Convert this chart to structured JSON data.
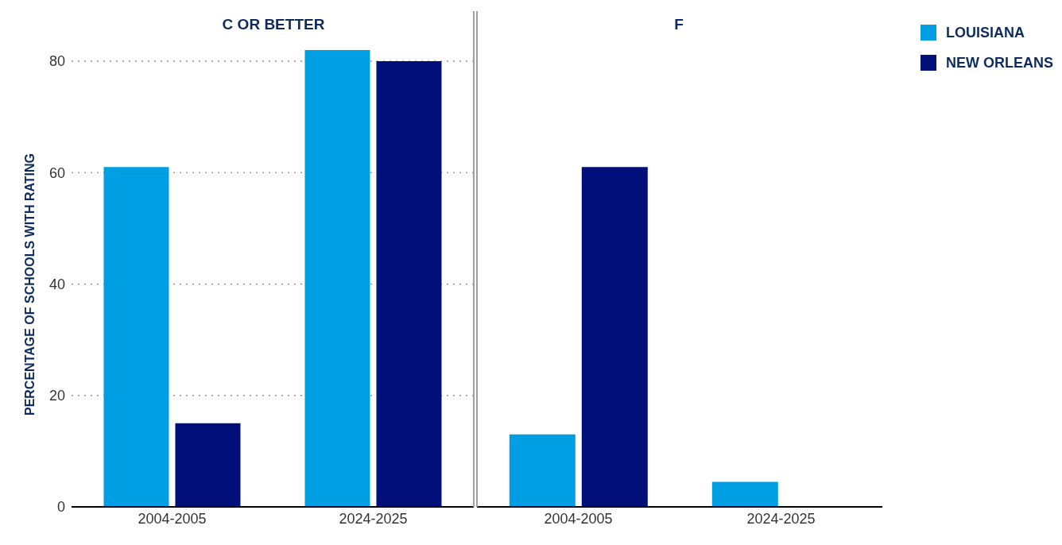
{
  "chart_data": [
    {
      "type": "bar",
      "title": "C OR BETTER",
      "ylabel": "PERCENTAGE OF SCHOOLS WITH RATING",
      "categories": [
        "2004-2005",
        "2024-2025"
      ],
      "series": [
        {
          "name": "LOUISIANA",
          "color": "#009fe3",
          "values": [
            61,
            82
          ]
        },
        {
          "name": "NEW ORLEANS",
          "color": "#000f7a",
          "values": [
            15,
            80
          ]
        }
      ],
      "ylim": [
        0,
        89
      ],
      "yticks": [
        0,
        20,
        40,
        60,
        80
      ],
      "grid": "y",
      "legend": "top right"
    },
    {
      "type": "bar",
      "title": "F",
      "categories": [
        "2004-2005",
        "2024-2025"
      ],
      "series": [
        {
          "color": "#009fe3",
          "values": [
            13,
            4.5
          ]
        },
        {
          "color": "#000f7a",
          "values": [
            61,
            0
          ]
        }
      ],
      "ylim": [
        0,
        89
      ],
      "yticks": [
        0,
        20,
        40,
        60,
        80
      ],
      "grid": "y",
      "tick_labels": "x"
    }
  ]
}
